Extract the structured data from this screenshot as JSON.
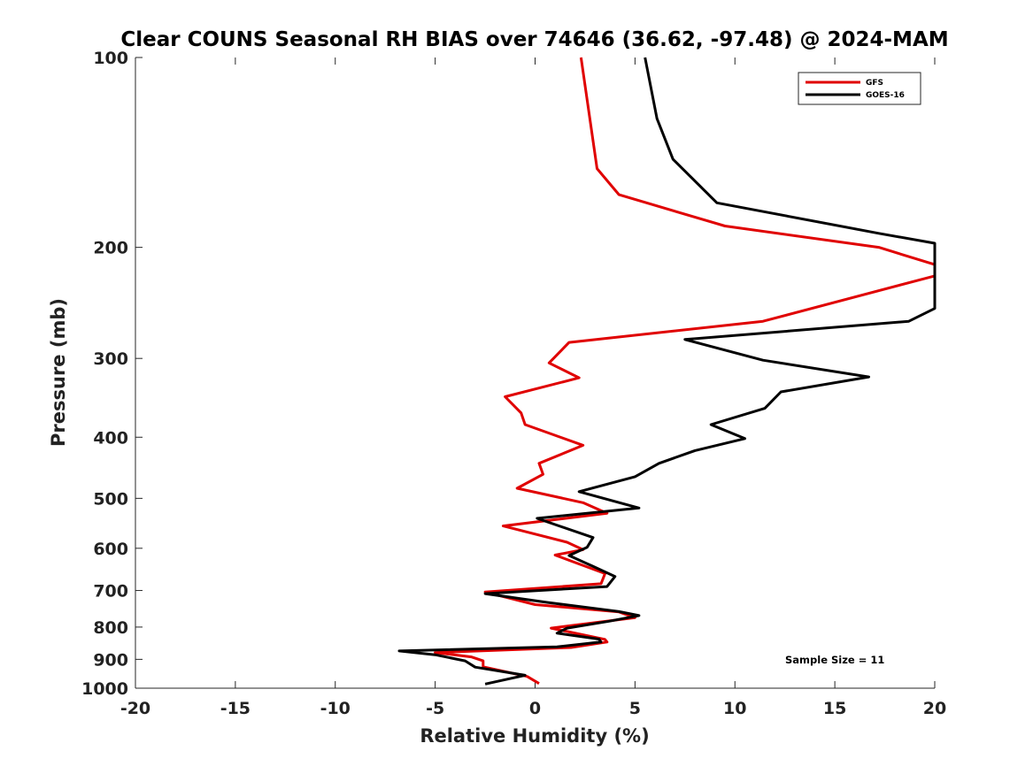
{
  "chart_data": {
    "type": "line",
    "title": "Clear COUNS Seasonal RH BIAS over 74646 (36.62, -97.48) @ 2024-MAM",
    "xlabel": "Relative Humidity (%)",
    "ylabel": "Pressure (mb)",
    "xlim": [
      -20,
      20
    ],
    "ylim": [
      1000,
      100
    ],
    "y_scale": "log-pressure",
    "xticks": [
      -20,
      -15,
      -10,
      -5,
      0,
      5,
      10,
      15,
      20
    ],
    "xtick_labels": [
      "-20",
      "-15",
      "-10",
      "-5",
      "0",
      "5",
      "10",
      "15",
      "20"
    ],
    "yticks": [
      100,
      200,
      300,
      400,
      500,
      600,
      700,
      800,
      900,
      1000
    ],
    "ytick_labels": [
      "100",
      "200",
      "300",
      "400",
      "500",
      "600",
      "700",
      "800",
      "900",
      "1000"
    ],
    "grid": false,
    "legend_position": "top-right",
    "annotation": "Sample Size = 11",
    "series": [
      {
        "name": "GFS",
        "color": "#e00000",
        "points": [
          [
            2.3,
            100
          ],
          [
            3.1,
            150
          ],
          [
            4.2,
            165
          ],
          [
            9.5,
            185
          ],
          [
            17.2,
            200
          ],
          [
            20.0,
            213
          ],
          [
            20.0,
            222
          ],
          [
            11.4,
            262
          ],
          [
            1.7,
            283
          ],
          [
            0.7,
            305
          ],
          [
            2.2,
            322
          ],
          [
            -1.5,
            345
          ],
          [
            -0.7,
            366
          ],
          [
            -0.5,
            382
          ],
          [
            2.4,
            412
          ],
          [
            0.2,
            440
          ],
          [
            0.4,
            458
          ],
          [
            -0.9,
            482
          ],
          [
            2.4,
            508
          ],
          [
            3.6,
            528
          ],
          [
            -1.6,
            553
          ],
          [
            1.6,
            587
          ],
          [
            2.4,
            603
          ],
          [
            1.0,
            615
          ],
          [
            2.3,
            637
          ],
          [
            3.5,
            658
          ],
          [
            3.3,
            683
          ],
          [
            -2.5,
            704
          ],
          [
            0.0,
            737
          ],
          [
            4.2,
            757
          ],
          [
            5.0,
            773
          ],
          [
            0.8,
            803
          ],
          [
            3.5,
            837
          ],
          [
            3.6,
            845
          ],
          [
            1.8,
            862
          ],
          [
            -5.0,
            878
          ],
          [
            -3.2,
            892
          ],
          [
            -2.6,
            905
          ],
          [
            -2.6,
            925
          ],
          [
            -0.4,
            958
          ],
          [
            0.2,
            983
          ]
        ]
      },
      {
        "name": "GOES-16",
        "color": "#000000",
        "points": [
          [
            5.5,
            100
          ],
          [
            6.1,
            125
          ],
          [
            6.9,
            145
          ],
          [
            9.1,
            170
          ],
          [
            17.2,
            190
          ],
          [
            20.0,
            197
          ],
          [
            20.0,
            250
          ],
          [
            18.7,
            262
          ],
          [
            7.5,
            280
          ],
          [
            11.4,
            302
          ],
          [
            16.7,
            321
          ],
          [
            12.3,
            339
          ],
          [
            11.5,
            360
          ],
          [
            8.8,
            382
          ],
          [
            10.5,
            402
          ],
          [
            8.0,
            420
          ],
          [
            6.2,
            440
          ],
          [
            5.0,
            462
          ],
          [
            2.2,
            488
          ],
          [
            5.2,
            518
          ],
          [
            0.1,
            538
          ],
          [
            2.9,
            577
          ],
          [
            2.6,
            598
          ],
          [
            1.7,
            616
          ],
          [
            2.9,
            641
          ],
          [
            4.0,
            665
          ],
          [
            3.6,
            690
          ],
          [
            -2.5,
            708
          ],
          [
            0.6,
            731
          ],
          [
            4.2,
            756
          ],
          [
            5.2,
            767
          ],
          [
            3.7,
            783
          ],
          [
            1.6,
            803
          ],
          [
            1.1,
            818
          ],
          [
            3.2,
            836
          ],
          [
            3.3,
            845
          ],
          [
            1.1,
            860
          ],
          [
            -6.8,
            873
          ],
          [
            -5.0,
            885
          ],
          [
            -3.5,
            905
          ],
          [
            -3.0,
            926
          ],
          [
            -0.5,
            954
          ],
          [
            -2.5,
            985
          ]
        ]
      }
    ]
  }
}
